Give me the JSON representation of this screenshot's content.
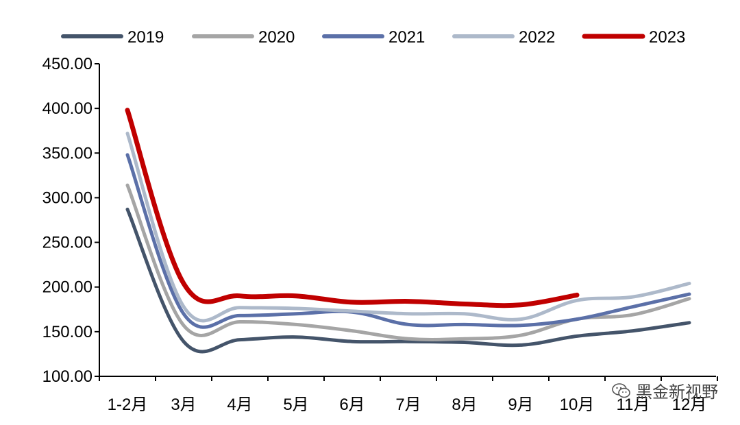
{
  "chart_data": {
    "type": "line",
    "title": "",
    "xlabel": "",
    "ylabel": "",
    "categories": [
      "1-2月",
      "3月",
      "4月",
      "5月",
      "6月",
      "7月",
      "8月",
      "9月",
      "10月",
      "11月",
      "12月"
    ],
    "ylim": [
      100,
      450
    ],
    "yticks": [
      100,
      150,
      200,
      250,
      300,
      350,
      400,
      450
    ],
    "ytick_labels": [
      "100.00",
      "150.00",
      "200.00",
      "250.00",
      "300.00",
      "350.00",
      "400.00",
      "450.00"
    ],
    "legend_position": "top",
    "series": [
      {
        "name": "2019",
        "color": "#44546a",
        "values": [
          287,
          139,
          141,
          144,
          139,
          139,
          138,
          135,
          145,
          151,
          160
        ]
      },
      {
        "name": "2020",
        "color": "#a5a5a5",
        "values": [
          314,
          157,
          161,
          158,
          151,
          142,
          142,
          146,
          164,
          169,
          187
        ]
      },
      {
        "name": "2021",
        "color": "#5b70a8",
        "values": [
          348,
          170,
          168,
          170,
          172,
          158,
          158,
          157,
          164,
          178,
          192
        ]
      },
      {
        "name": "2022",
        "color": "#adb9ca",
        "values": [
          372,
          178,
          177,
          176,
          173,
          170,
          170,
          164,
          185,
          189,
          204
        ]
      },
      {
        "name": "2023",
        "color": "#c00000",
        "values": [
          398,
          204,
          190,
          190,
          183,
          184,
          181,
          180,
          191,
          null,
          null
        ]
      }
    ]
  },
  "watermark": {
    "text": "黑金新视野",
    "icon": "wechat-icon"
  }
}
